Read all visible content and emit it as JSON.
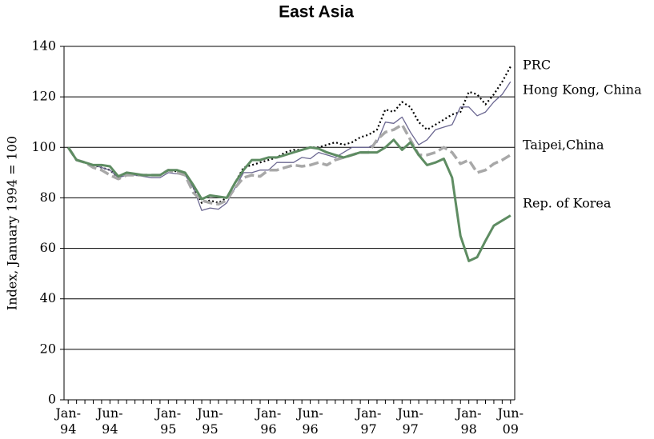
{
  "chart_data": {
    "type": "line",
    "title": "East Asia",
    "y_label": "Index, January 1994 = 100",
    "categories": [
      "Jan-94",
      null,
      null,
      null,
      null,
      "Jun-94",
      null,
      null,
      null,
      null,
      null,
      null,
      "Jan-95",
      null,
      null,
      null,
      null,
      "Jun-95",
      null,
      null,
      null,
      null,
      null,
      null,
      "Jan-96",
      null,
      null,
      null,
      null,
      "Jun-96",
      null,
      null,
      null,
      null,
      null,
      null,
      "Jan-97",
      null,
      null,
      null,
      null,
      "Jun-97",
      null,
      null,
      null,
      null,
      null,
      null,
      "Jan-98",
      null,
      null,
      null,
      null,
      "Jun-09"
    ],
    "ylim": [
      0,
      140
    ],
    "yticks": [
      0,
      20,
      40,
      60,
      80,
      100,
      120,
      140
    ],
    "grid": true,
    "series": [
      {
        "name": "PRC",
        "color": "#000000",
        "style": "dotted",
        "values": [
          100,
          95,
          94,
          93,
          92,
          91,
          88,
          89.5,
          89,
          89,
          89,
          89,
          91,
          90.5,
          90,
          84,
          78,
          79,
          78,
          80,
          86,
          92,
          93,
          94,
          95,
          96,
          98,
          99,
          99,
          100,
          100,
          101,
          102,
          101,
          102,
          104,
          105,
          107,
          115,
          114,
          118,
          116,
          110,
          107,
          109,
          111,
          113,
          114,
          122,
          121,
          117,
          121,
          126,
          132
        ]
      },
      {
        "name": "Hong Kong, China",
        "color": "#6b6791",
        "style": "solid",
        "values": [
          100,
          95,
          94,
          93,
          92,
          91,
          88,
          89,
          89,
          88.5,
          88,
          88,
          90,
          89.5,
          89,
          84,
          75,
          76,
          75.5,
          78,
          84,
          90,
          90,
          91,
          91,
          94,
          94,
          94,
          96,
          95.5,
          98,
          97,
          96,
          98,
          100,
          100,
          100,
          102,
          110,
          109.5,
          112,
          106,
          101,
          103,
          107,
          108,
          109,
          116,
          116,
          112.5,
          114,
          118,
          121,
          126
        ]
      },
      {
        "name": "Taipei,China",
        "color": "#a8a8a8",
        "style": "dashed",
        "values": [
          100,
          95,
          94,
          92,
          91,
          89,
          87.5,
          89,
          89,
          89,
          89,
          89,
          91,
          90,
          89,
          82,
          79,
          78,
          77.5,
          79,
          84,
          88,
          89,
          88.5,
          91,
          91,
          92,
          93,
          92.5,
          93,
          94,
          93,
          95,
          96,
          97,
          98,
          98,
          103,
          106,
          107,
          109,
          103,
          97,
          97,
          98,
          100,
          98,
          93.5,
          95,
          90,
          91,
          93.5,
          95,
          97
        ]
      },
      {
        "name": "Rep. of Korea",
        "color": "#5e8c62",
        "style": "thick",
        "values": [
          100,
          95,
          94,
          93,
          93,
          92.5,
          88.5,
          90,
          89.5,
          89,
          89,
          89,
          91,
          91,
          90,
          85,
          79.5,
          81,
          80.5,
          80,
          86,
          91,
          95,
          95,
          96,
          96,
          97,
          98,
          99,
          100,
          99.5,
          98,
          97,
          96,
          97,
          98,
          98,
          98,
          100,
          103,
          99,
          102,
          97,
          93,
          94,
          95.5,
          88,
          65,
          55,
          56.5,
          63,
          69,
          71,
          73
        ]
      }
    ]
  }
}
